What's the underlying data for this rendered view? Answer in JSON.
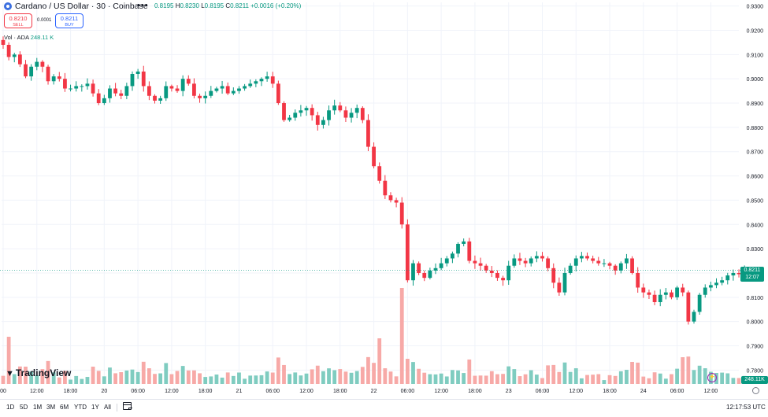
{
  "header": {
    "title": "Cardano / US Dollar · 30 · Coinbase",
    "more_label": "•••",
    "ohlc": {
      "o": "0.8195",
      "h": "0.8230",
      "l": "0.8195",
      "c": "0.8211",
      "change": "+0.0016 (+0.20%)"
    },
    "ohlc_labels": {
      "h": "H",
      "l": "L",
      "c": "C"
    },
    "sell_price": "0.8210",
    "sell_label": "SELL",
    "buy_price": "0.8211",
    "buy_label": "BUY",
    "spread": "0.0001",
    "volume_label": "Vol · ADA",
    "volume_value": "248.11 K"
  },
  "last_price_tag": {
    "price": "0.8211",
    "countdown": "12:07"
  },
  "volume_tag": "248.11K",
  "logo_text": "TradingView",
  "ranges": [
    "1D",
    "5D",
    "1M",
    "3M",
    "6M",
    "YTD",
    "1Y",
    "All"
  ],
  "clock": "12:17:53 UTC",
  "colors": {
    "up": "#089981",
    "down": "#f23645",
    "up_vol": "#7fccc0",
    "down_vol": "#f7a9a7",
    "accent": "#2962ff"
  },
  "icons": [
    "calendar-range-icon",
    "settings-gear-icon",
    "replay-icon",
    "more-dots-icon"
  ],
  "chart_data": {
    "type": "candlestick",
    "symbol": "Cardano / US Dollar",
    "interval": "30",
    "exchange": "Coinbase",
    "y_ticks": [
      "0.9300",
      "0.9200",
      "0.9100",
      "0.9000",
      "0.8900",
      "0.8800",
      "0.8700",
      "0.8600",
      "0.8500",
      "0.8400",
      "0.8300",
      "0.8200",
      "0.8100",
      "0.8000",
      "0.7900",
      "0.7800"
    ],
    "x_ticks": [
      {
        "i": 0,
        "label": "00"
      },
      {
        "i": 6,
        "label": "12:00"
      },
      {
        "i": 12,
        "label": "18:00"
      },
      {
        "i": 18,
        "label": "20"
      },
      {
        "i": 24,
        "label": "06:00"
      },
      {
        "i": 30,
        "label": "12:00"
      },
      {
        "i": 36,
        "label": "18:00"
      },
      {
        "i": 42,
        "label": "21"
      },
      {
        "i": 48,
        "label": "06:00"
      },
      {
        "i": 54,
        "label": "12:00"
      },
      {
        "i": 60,
        "label": "18:00"
      },
      {
        "i": 66,
        "label": "22"
      },
      {
        "i": 72,
        "label": "06:00"
      },
      {
        "i": 78,
        "label": "12:00"
      },
      {
        "i": 84,
        "label": "18:00"
      },
      {
        "i": 90,
        "label": "23"
      },
      {
        "i": 96,
        "label": "06:00"
      },
      {
        "i": 102,
        "label": "12:00"
      },
      {
        "i": 108,
        "label": "18:00"
      },
      {
        "i": 114,
        "label": "24"
      },
      {
        "i": 120,
        "label": "06:00"
      },
      {
        "i": 126,
        "label": "12:00"
      }
    ],
    "ylim": [
      0.7785,
      0.9315
    ],
    "last_price": 0.8211,
    "closes": [
      0.914,
      0.909,
      0.91,
      0.906,
      0.901,
      0.905,
      0.907,
      0.905,
      0.899,
      0.901,
      0.9,
      0.896,
      0.896,
      0.897,
      0.897,
      0.898,
      0.894,
      0.89,
      0.892,
      0.896,
      0.894,
      0.893,
      0.897,
      0.902,
      0.903,
      0.897,
      0.893,
      0.891,
      0.892,
      0.897,
      0.896,
      0.895,
      0.9,
      0.898,
      0.893,
      0.892,
      0.893,
      0.895,
      0.896,
      0.897,
      0.894,
      0.895,
      0.896,
      0.897,
      0.898,
      0.899,
      0.9,
      0.901,
      0.898,
      0.89,
      0.883,
      0.884,
      0.886,
      0.887,
      0.888,
      0.885,
      0.881,
      0.883,
      0.887,
      0.889,
      0.887,
      0.884,
      0.886,
      0.888,
      0.883,
      0.872,
      0.864,
      0.858,
      0.852,
      0.85,
      0.849,
      0.84,
      0.817,
      0.824,
      0.82,
      0.818,
      0.821,
      0.822,
      0.824,
      0.826,
      0.828,
      0.832,
      0.833,
      0.825,
      0.824,
      0.823,
      0.821,
      0.82,
      0.818,
      0.817,
      0.823,
      0.826,
      0.825,
      0.824,
      0.826,
      0.827,
      0.826,
      0.822,
      0.816,
      0.812,
      0.82,
      0.823,
      0.826,
      0.827,
      0.826,
      0.825,
      0.824,
      0.824,
      0.823,
      0.821,
      0.824,
      0.826,
      0.82,
      0.814,
      0.812,
      0.811,
      0.808,
      0.811,
      0.812,
      0.81,
      0.814,
      0.812,
      0.8,
      0.804,
      0.811,
      0.814,
      0.815,
      0.816,
      0.817,
      0.819,
      0.82,
      0.8195,
      0.8211
    ]
  }
}
